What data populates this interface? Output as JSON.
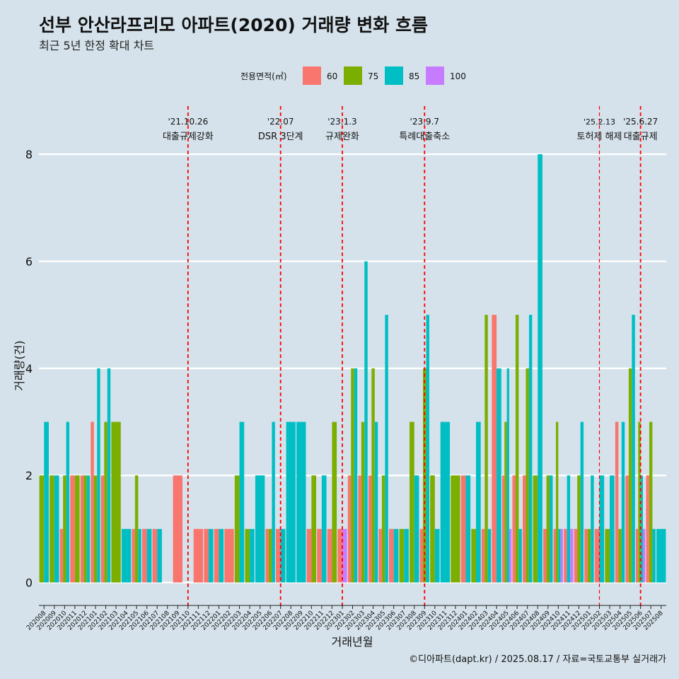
{
  "header": {
    "title": "선부 안산라프리모 아파트(2020) 거래량 변화 흐름",
    "subtitle": "최근 5년 한정 확대 차트"
  },
  "legend": {
    "title": "전용면적(㎡)",
    "items": [
      {
        "label": "60",
        "color": "#f8766d"
      },
      {
        "label": "75",
        "color": "#7cae00"
      },
      {
        "label": "85",
        "color": "#00bfc4"
      },
      {
        "label": "100",
        "color": "#c77cff"
      }
    ]
  },
  "footer": {
    "caption": "©디아파트(dapt.kr) / 2025.08.17 / 자료=국토교통부 실거래가"
  },
  "chart_data": {
    "type": "bar",
    "xlabel": "거래년월",
    "ylabel": "거래량(건)",
    "ylim": [
      -0.35,
      8.9
    ],
    "yticks": [
      0,
      2,
      4,
      6,
      8
    ],
    "grid": true,
    "legend_position": "top",
    "categories": [
      "202008",
      "202009",
      "202010",
      "202011",
      "202012",
      "202101",
      "202102",
      "202103",
      "202104",
      "202105",
      "202106",
      "202107",
      "202108",
      "202109",
      "202110",
      "202111",
      "202112",
      "202201",
      "202202",
      "202203",
      "202204",
      "202205",
      "202206",
      "202207",
      "202208",
      "202209",
      "202210",
      "202211",
      "202212",
      "202301",
      "202302",
      "202303",
      "202304",
      "202305",
      "202306",
      "202307",
      "202308",
      "202309",
      "202310",
      "202311",
      "202312",
      "202401",
      "202402",
      "202403",
      "202404",
      "202405",
      "202406",
      "202407",
      "202408",
      "202409",
      "202410",
      "202411",
      "202412",
      "202501",
      "202502",
      "202503",
      "202504",
      "202505",
      "202506",
      "202507",
      "202508"
    ],
    "series": [
      {
        "name": "60",
        "color": "#f8766d",
        "values": [
          0,
          0,
          1,
          2,
          2,
          3,
          2,
          0,
          0,
          1,
          1,
          1,
          0,
          2,
          0,
          1,
          1,
          1,
          1,
          0,
          0,
          0,
          1,
          1,
          0,
          0,
          1,
          1,
          1,
          1,
          2,
          2,
          2,
          1,
          1,
          0,
          0,
          1,
          0,
          0,
          0,
          2,
          0,
          1,
          5,
          2,
          2,
          2,
          0,
          1,
          1,
          1,
          1,
          1,
          1,
          0,
          3,
          2,
          1,
          2,
          0
        ]
      },
      {
        "name": "75",
        "color": "#7cae00",
        "values": [
          2,
          2,
          2,
          2,
          2,
          2,
          3,
          3,
          0,
          2,
          0,
          0,
          0,
          0,
          0,
          0,
          0,
          0,
          0,
          2,
          1,
          0,
          1,
          0,
          0,
          0,
          2,
          0,
          3,
          0,
          4,
          3,
          4,
          2,
          0,
          1,
          3,
          4,
          2,
          0,
          2,
          0,
          1,
          5,
          0,
          3,
          5,
          4,
          2,
          2,
          3,
          0,
          2,
          1,
          0,
          1,
          1,
          4,
          3,
          3,
          0
        ]
      },
      {
        "name": "85",
        "color": "#00bfc4",
        "values": [
          3,
          2,
          3,
          0,
          2,
          4,
          4,
          0,
          1,
          1,
          1,
          1,
          0,
          0,
          0,
          0,
          1,
          1,
          0,
          3,
          1,
          2,
          3,
          1,
          3,
          3,
          0,
          2,
          0,
          0,
          4,
          6,
          3,
          5,
          1,
          1,
          2,
          5,
          1,
          3,
          0,
          2,
          3,
          1,
          4,
          4,
          1,
          5,
          8,
          2,
          1,
          2,
          3,
          2,
          2,
          2,
          3,
          5,
          2,
          1,
          1
        ]
      },
      {
        "name": "100",
        "color": "#c77cff",
        "values": [
          0,
          0,
          0,
          0,
          0,
          0,
          0,
          0,
          0,
          0,
          0,
          0,
          0,
          0,
          0,
          0,
          0,
          0,
          0,
          0,
          0,
          0,
          0,
          0,
          0,
          0,
          0,
          0,
          0,
          1,
          0,
          0,
          0,
          0,
          0,
          0,
          0,
          0,
          0,
          0,
          0,
          0,
          0,
          0,
          0,
          1,
          0,
          0,
          0,
          0,
          1,
          1,
          0,
          0,
          0,
          0,
          0,
          0,
          1,
          0,
          0
        ]
      }
    ],
    "annotations": [
      {
        "date": "'21.10.26",
        "label": "대출규제강화",
        "category": "202110"
      },
      {
        "date": "'22.07",
        "label": "DSR 3단계",
        "category": "202207"
      },
      {
        "date": "'23.1.3",
        "label": "규제완화",
        "category": "202301"
      },
      {
        "date": "'23.9.7",
        "label": "특례대출축소",
        "category": "202309"
      },
      {
        "date": "'25.2.13",
        "label": "토허제 해제",
        "category": "202502"
      },
      {
        "date": "'25.6.27",
        "label": "대출규제",
        "category": "202506"
      }
    ]
  }
}
